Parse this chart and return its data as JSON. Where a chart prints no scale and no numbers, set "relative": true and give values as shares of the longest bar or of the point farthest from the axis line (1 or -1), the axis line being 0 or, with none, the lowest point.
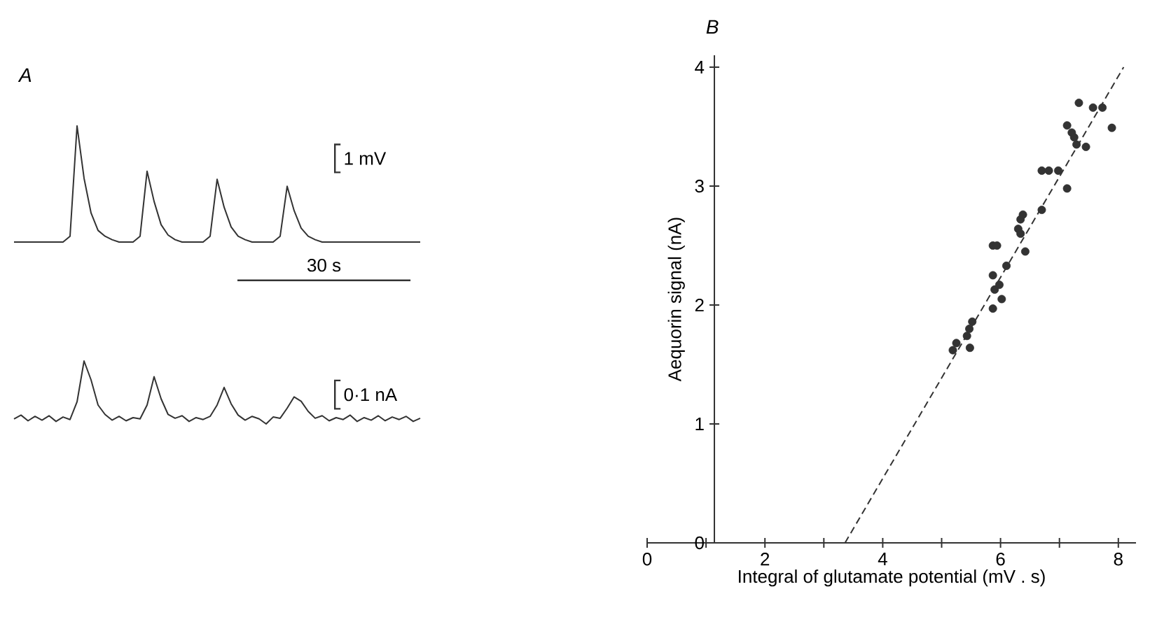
{
  "chart_data": [
    {
      "type": "line",
      "title": "A",
      "relative": true,
      "categories": [
        null,
        null,
        null,
        null,
        null,
        null,
        null,
        null,
        null,
        null,
        null,
        null,
        null,
        null,
        null,
        null,
        null,
        null,
        null,
        null,
        null,
        null,
        null,
        null,
        null,
        null,
        null,
        null,
        null,
        null,
        null,
        null,
        null,
        null,
        null,
        null,
        null,
        null,
        null,
        null,
        null,
        null,
        null,
        null,
        null,
        null,
        null,
        null,
        null,
        null,
        null,
        null,
        null,
        null,
        null,
        null,
        null,
        null,
        null
      ],
      "series": [
        {
          "color": "#333333",
          "values": [
            0,
            0,
            0,
            0,
            0,
            0,
            0,
            0,
            0.05,
            1.0,
            0.55,
            0.25,
            0.1,
            0.05,
            0.02,
            0,
            0,
            0,
            0.05,
            0.61,
            0.35,
            0.15,
            0.06,
            0.02,
            0,
            0,
            0,
            0,
            0.05,
            0.54,
            0.3,
            0.13,
            0.05,
            0.02,
            0,
            0,
            0,
            0,
            0.05,
            0.48,
            0.27,
            0.12,
            0.05,
            0.02,
            0,
            0,
            0,
            0,
            0,
            0,
            0,
            0,
            0,
            0,
            0,
            0,
            0,
            0,
            0
          ]
        }
      ],
      "annotations": [
        "1 mV",
        "30 s"
      ]
    },
    {
      "type": "line",
      "relative": true,
      "categories": [
        null,
        null,
        null,
        null,
        null,
        null,
        null,
        null,
        null,
        null,
        null,
        null,
        null,
        null,
        null,
        null,
        null,
        null,
        null,
        null,
        null,
        null,
        null,
        null,
        null,
        null,
        null,
        null,
        null,
        null,
        null,
        null,
        null,
        null,
        null,
        null,
        null,
        null,
        null,
        null,
        null,
        null,
        null,
        null,
        null,
        null,
        null,
        null,
        null,
        null,
        null,
        null,
        null,
        null,
        null,
        null,
        null,
        null,
        null
      ],
      "series": [
        {
          "color": "#333333",
          "values": [
            0.08,
            0.14,
            0.05,
            0.12,
            0.06,
            0.13,
            0.04,
            0.11,
            0.07,
            0.35,
            1.0,
            0.7,
            0.3,
            0.15,
            0.06,
            0.12,
            0.05,
            0.1,
            0.08,
            0.3,
            0.75,
            0.4,
            0.15,
            0.09,
            0.13,
            0.04,
            0.1,
            0.07,
            0.12,
            0.3,
            0.58,
            0.32,
            0.14,
            0.06,
            0.12,
            0.08,
            0.0,
            0.11,
            0.09,
            0.25,
            0.43,
            0.36,
            0.2,
            0.09,
            0.13,
            0.05,
            0.1,
            0.07,
            0.14,
            0.04,
            0.1,
            0.06,
            0.13,
            0.05,
            0.11,
            0.07,
            0.12,
            0.04,
            0.09
          ]
        }
      ],
      "annotations": [
        "0·1 nA"
      ]
    },
    {
      "type": "scatter",
      "title": "B",
      "xlabel": "Integral of glutamate potential (mV . s)",
      "ylabel": "Aequorin signal (nA)",
      "xlim": [
        0,
        8.3
      ],
      "ylim": [
        0,
        4.1
      ],
      "xticks": [
        0,
        {
          "value": 1,
          "label": null
        },
        2,
        {
          "value": 3,
          "label": null
        },
        4,
        {
          "value": 5,
          "label": null
        },
        6,
        {
          "value": 7,
          "label": null
        },
        8
      ],
      "yticks": [
        0,
        1,
        2,
        3,
        4
      ],
      "series": [
        {
          "type": "scatter",
          "marker": "circle",
          "color": "#333333",
          "x": [
            5.19,
            5.25,
            5.43,
            5.48,
            5.52,
            5.47,
            5.87,
            5.9,
            5.98,
            6.02,
            5.87,
            5.87,
            6.1,
            5.94,
            6.34,
            6.38,
            6.3,
            6.42,
            6.34,
            6.7,
            6.7,
            6.82,
            6.98,
            7.13,
            7.13,
            7.21,
            7.29,
            7.45,
            7.33,
            7.57,
            7.73,
            7.89,
            7.25
          ],
          "values": [
            1.62,
            1.68,
            1.74,
            1.64,
            1.86,
            1.8,
            2.25,
            2.13,
            2.17,
            2.05,
            1.97,
            2.5,
            2.33,
            2.5,
            2.72,
            2.76,
            2.64,
            2.45,
            2.6,
            2.8,
            3.13,
            3.13,
            3.13,
            2.98,
            3.51,
            3.45,
            3.35,
            3.33,
            3.7,
            3.66,
            3.66,
            3.49,
            3.41
          ]
        },
        {
          "type": "line",
          "line_style": "dashed",
          "color": "#333333",
          "x": [
            3.36,
            8.09
          ],
          "values": [
            0,
            4.0
          ]
        }
      ]
    }
  ]
}
